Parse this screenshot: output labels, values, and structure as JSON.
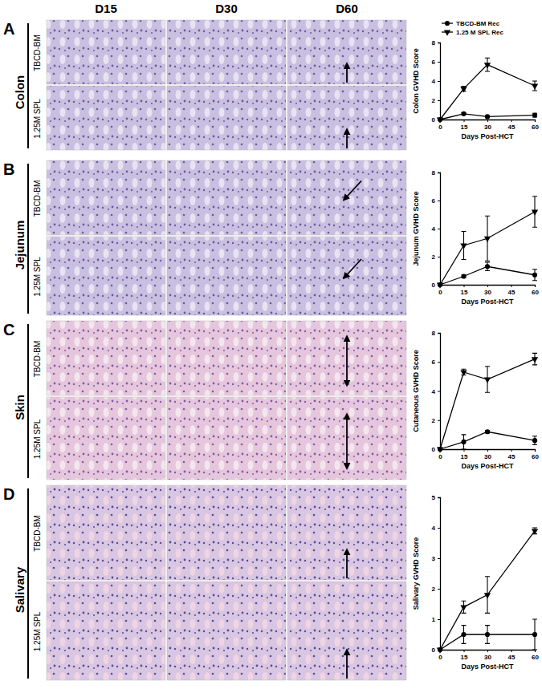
{
  "figure": {
    "columns": [
      "D15",
      "D30",
      "D60"
    ],
    "panels": [
      {
        "letter": "A",
        "tissue": "Colon",
        "rows": [
          "TBCD-BM",
          "1.25M SPL"
        ]
      },
      {
        "letter": "B",
        "tissue": "Jejunum",
        "rows": [
          "TBCD-BM",
          "1.25M SPL"
        ]
      },
      {
        "letter": "C",
        "tissue": "Skin",
        "rows": [
          "TBCD-BM",
          "1.25M SPL"
        ]
      },
      {
        "letter": "D",
        "tissue": "Salivary",
        "rows": [
          "TBCD-BM",
          "1.25M SPL"
        ]
      }
    ]
  },
  "chart_data": [
    {
      "type": "line",
      "x_label": "Days Post-HCT",
      "y_label": "Colon GVHD Score",
      "x": [
        0,
        15,
        30,
        60
      ],
      "xlim": [
        0,
        60
      ],
      "xticks": [
        0,
        15,
        30,
        45,
        60
      ],
      "ylim": [
        0,
        8
      ],
      "yticks": [
        0,
        2,
        4,
        6,
        8
      ],
      "legend": "upper left",
      "series": [
        {
          "name": "TBCD-BM Rec",
          "color": "#000000",
          "marker": "circle",
          "line_style": "solid",
          "values": [
            0,
            0.6,
            0.3,
            0.45
          ],
          "errors": [
            0,
            0.1,
            0.1,
            0.2
          ]
        },
        {
          "name": "1.25 M SPL Rec",
          "color": "#000000",
          "marker": "triangle-down",
          "line_style": "solid",
          "values": [
            0,
            3.2,
            5.7,
            3.5
          ],
          "errors": [
            0,
            0.25,
            0.7,
            0.5
          ]
        }
      ]
    },
    {
      "type": "line",
      "x_label": "Days Post-HCT",
      "y_label": "Jejunum GVHD Score",
      "x": [
        0,
        15,
        30,
        60
      ],
      "xlim": [
        0,
        60
      ],
      "xticks": [
        0,
        15,
        30,
        45,
        60
      ],
      "ylim": [
        0,
        8
      ],
      "yticks": [
        0,
        2,
        4,
        6,
        8
      ],
      "series": [
        {
          "name": "TBCD-BM Rec",
          "color": "#000000",
          "marker": "circle",
          "line_style": "solid",
          "values": [
            0,
            0.6,
            1.3,
            0.7
          ],
          "errors": [
            0,
            0.1,
            0.3,
            0.4
          ]
        },
        {
          "name": "1.25 M SPL Rec",
          "color": "#000000",
          "marker": "triangle-down",
          "line_style": "solid",
          "values": [
            0,
            2.8,
            3.3,
            5.2
          ],
          "errors": [
            0,
            1.0,
            1.6,
            1.1
          ]
        }
      ]
    },
    {
      "type": "line",
      "x_label": "Days Post-HCT",
      "y_label": "Cutaneous GVHD Score",
      "x": [
        0,
        15,
        30,
        60
      ],
      "xlim": [
        0,
        60
      ],
      "xticks": [
        0,
        15,
        30,
        45,
        60
      ],
      "ylim": [
        0,
        8
      ],
      "yticks": [
        0,
        2,
        4,
        6,
        8
      ],
      "series": [
        {
          "name": "TBCD-BM Rec",
          "color": "#000000",
          "marker": "circle",
          "line_style": "solid",
          "values": [
            0,
            0.5,
            1.2,
            0.6
          ],
          "errors": [
            0,
            0.5,
            0.1,
            0.3
          ]
        },
        {
          "name": "1.25 M SPL Rec",
          "color": "#000000",
          "marker": "triangle-down",
          "line_style": "solid",
          "values": [
            0,
            5.3,
            4.8,
            6.2
          ],
          "errors": [
            0,
            0.2,
            0.9,
            0.4
          ]
        }
      ]
    },
    {
      "type": "line",
      "x_label": "Days Post-HCT",
      "y_label": "Salivary GVHD Score",
      "x": [
        0,
        15,
        30,
        60
      ],
      "xlim": [
        0,
        60
      ],
      "xticks": [
        0,
        15,
        30,
        45,
        60
      ],
      "ylim": [
        0,
        5
      ],
      "yticks": [
        0,
        1,
        2,
        3,
        4,
        5
      ],
      "series": [
        {
          "name": "TBCD-BM Rec",
          "color": "#000000",
          "marker": "circle",
          "line_style": "solid",
          "values": [
            0,
            0.5,
            0.5,
            0.5
          ],
          "errors": [
            0,
            0.3,
            0.3,
            0.5
          ]
        },
        {
          "name": "1.25 M SPL Rec",
          "color": "#000000",
          "marker": "triangle-down",
          "line_style": "solid",
          "values": [
            0,
            1.4,
            1.8,
            3.9
          ],
          "errors": [
            0,
            0.2,
            0.6,
            0.1
          ]
        }
      ]
    }
  ]
}
